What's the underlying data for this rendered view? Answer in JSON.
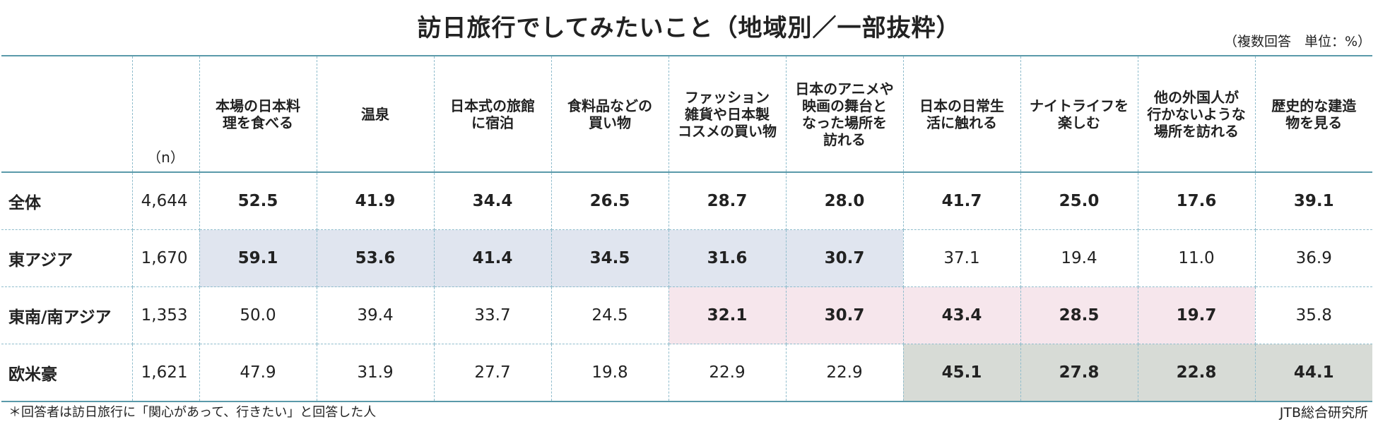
{
  "title": "訪日旅行でしてみたいこと（地域別／一部抜粋）",
  "unit_note": "（複数回答　単位：%）",
  "footnote": "＊回答者は訪日旅行に「関心があって、行きたい」と回答した人",
  "source": "JTB総合研究所",
  "n_label": "（n）",
  "colors": {
    "highlight_east_asia": "#e0e5ef",
    "highlight_southeast_asia": "#f6e6ec",
    "highlight_west": "#d7dbd6",
    "rule": "#5a9aaa"
  },
  "chart_data": {
    "type": "table",
    "title": "訪日旅行でしてみたいこと（地域別／一部抜粋）",
    "columns": [
      "本場の日本料\n理を食べる",
      "温泉",
      "日本式の旅館\nに宿泊",
      "食料品などの\n買い物",
      "ファッション\n雑貨や日本製\nコスメの買い物",
      "日本のアニメや\n映画の舞台と\nなった場所を\n訪れる",
      "日本の日常生\n活に触れる",
      "ナイトライフを\n楽しむ",
      "他の外国人が\n行かないような\n場所を訪れる",
      "歴史的な建造\n物を見る"
    ],
    "rows": [
      {
        "label": "全体",
        "n": "4,644",
        "values": [
          "52.5",
          "41.9",
          "34.4",
          "26.5",
          "28.7",
          "28.0",
          "41.7",
          "25.0",
          "17.6",
          "39.1"
        ],
        "bold": [
          true,
          true,
          true,
          true,
          true,
          true,
          true,
          true,
          true,
          true
        ],
        "highlight": [
          "",
          "",
          "",
          "",
          "",
          "",
          "",
          "",
          "",
          ""
        ]
      },
      {
        "label": "東アジア",
        "n": "1,670",
        "values": [
          "59.1",
          "53.6",
          "41.4",
          "34.5",
          "31.6",
          "30.7",
          "37.1",
          "19.4",
          "11.0",
          "36.9"
        ],
        "bold": [
          true,
          true,
          true,
          true,
          true,
          true,
          false,
          false,
          false,
          false
        ],
        "highlight": [
          "blue",
          "blue",
          "blue",
          "blue",
          "blue",
          "blue",
          "",
          "",
          "",
          ""
        ]
      },
      {
        "label": "東南/南アジア",
        "n": "1,353",
        "values": [
          "50.0",
          "39.4",
          "33.7",
          "24.5",
          "32.1",
          "30.7",
          "43.4",
          "28.5",
          "19.7",
          "35.8"
        ],
        "bold": [
          false,
          false,
          false,
          false,
          true,
          true,
          true,
          true,
          true,
          false
        ],
        "highlight": [
          "",
          "",
          "",
          "",
          "pink",
          "pink",
          "pink",
          "pink",
          "pink",
          ""
        ]
      },
      {
        "label": "欧米豪",
        "n": "1,621",
        "values": [
          "47.9",
          "31.9",
          "27.7",
          "19.8",
          "22.9",
          "22.9",
          "45.1",
          "27.8",
          "22.8",
          "44.1"
        ],
        "bold": [
          false,
          false,
          false,
          false,
          false,
          false,
          true,
          true,
          true,
          true
        ],
        "highlight": [
          "",
          "",
          "",
          "",
          "",
          "",
          "gray",
          "gray",
          "gray",
          "gray"
        ]
      }
    ]
  }
}
